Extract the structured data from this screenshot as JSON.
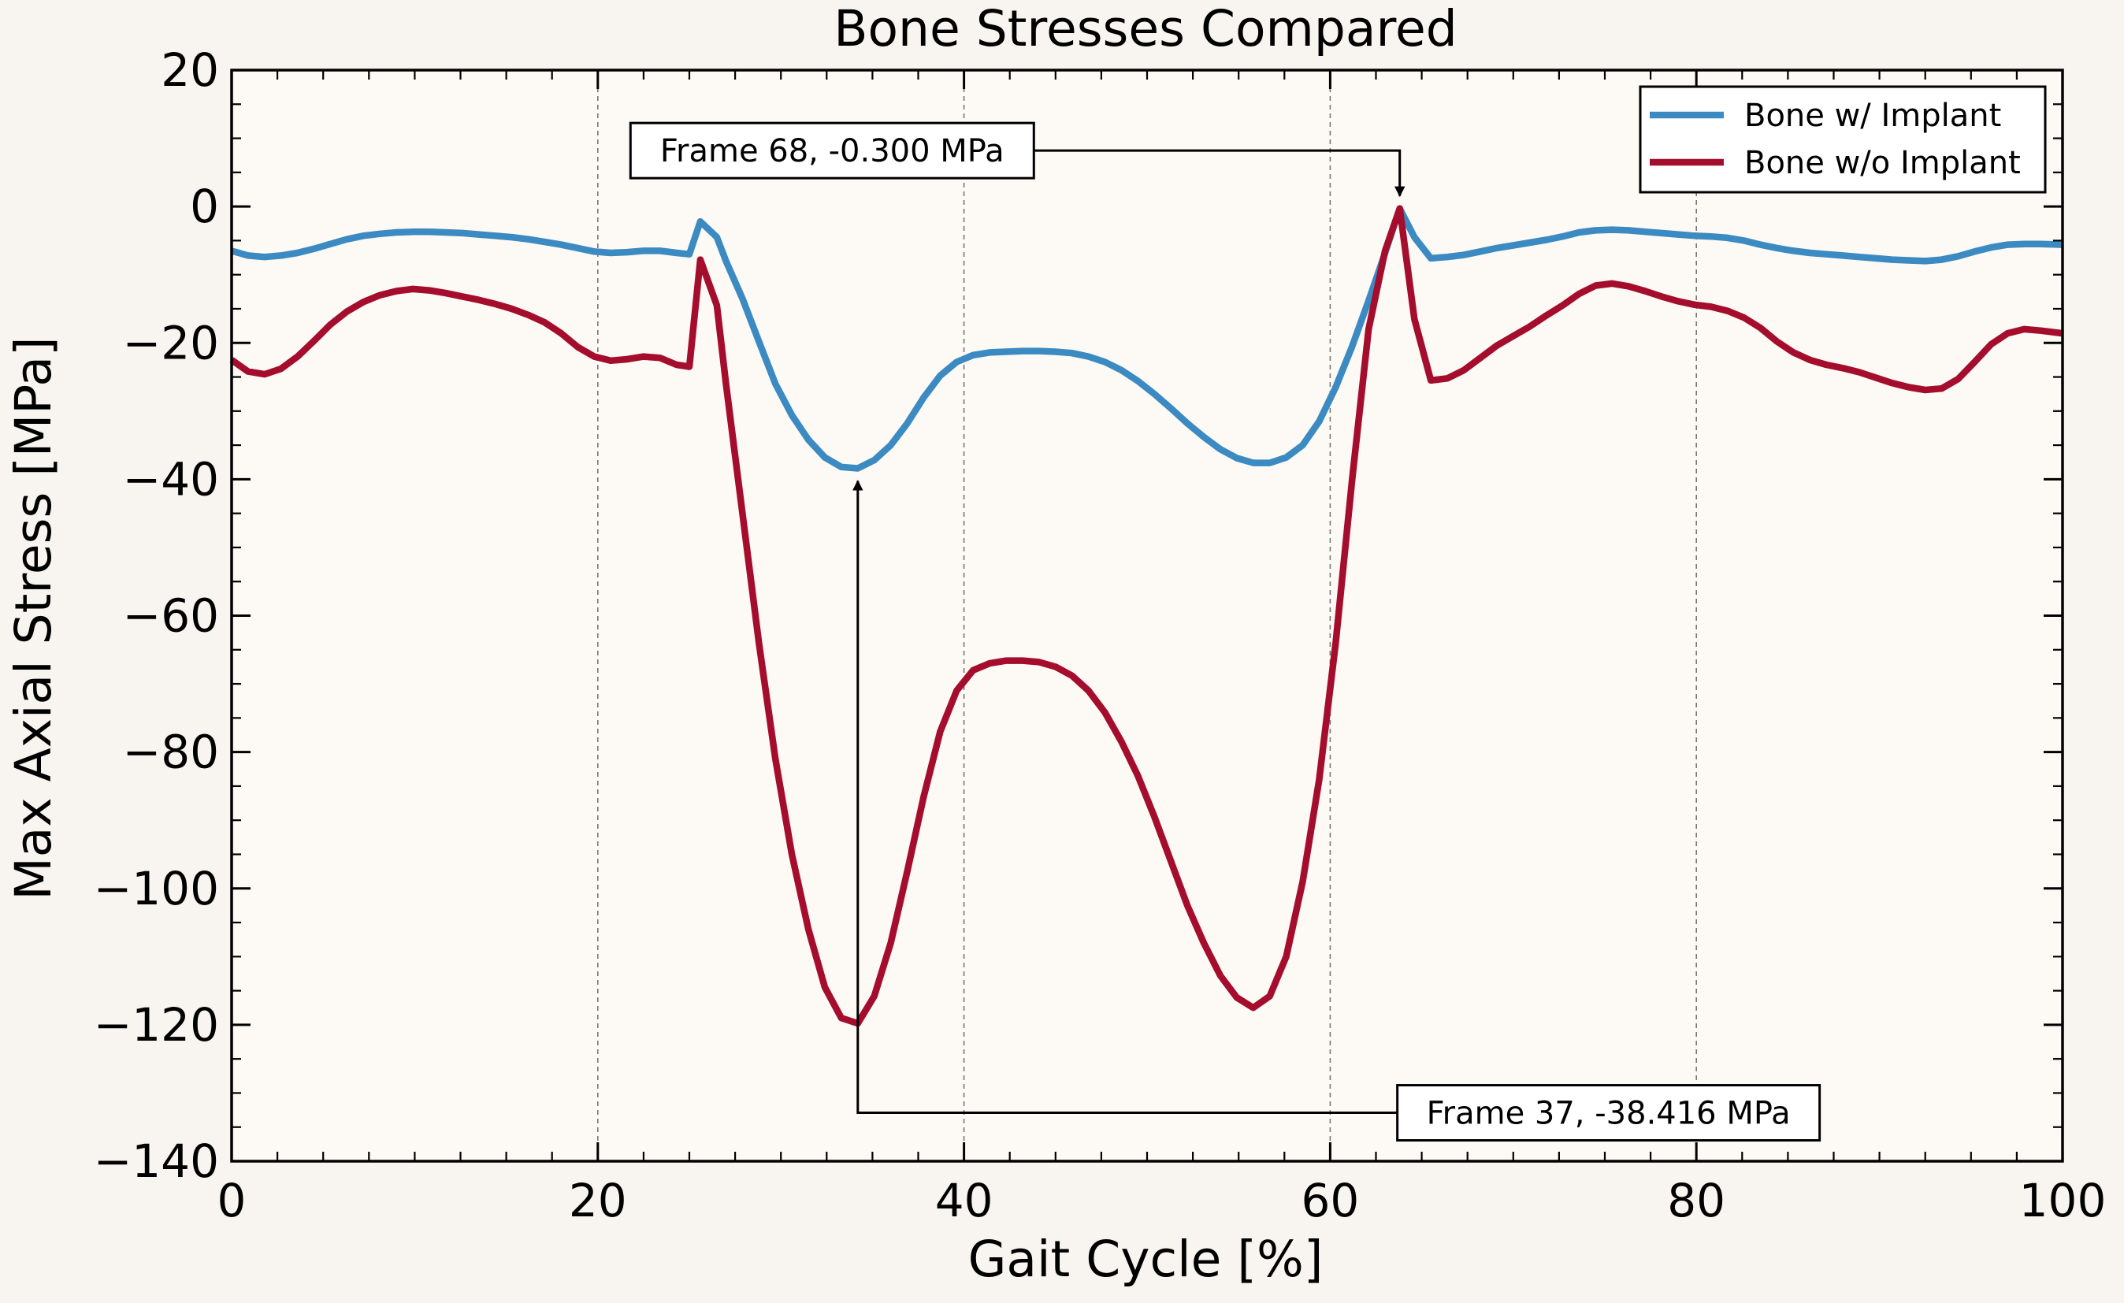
{
  "chart_data": {
    "type": "line",
    "title": "Bone Stresses Compared",
    "xlabel": "Gait Cycle [%]",
    "ylabel": "Max Axial Stress [MPa]",
    "xlim": [
      0,
      100
    ],
    "ylim": [
      -140,
      20
    ],
    "x_ticks": [
      0,
      20,
      40,
      60,
      80,
      100
    ],
    "y_ticks": [
      -140,
      -120,
      -100,
      -80,
      -60,
      -40,
      -20,
      0,
      20
    ],
    "x_tick_labels": [
      "0",
      "20",
      "40",
      "60",
      "80",
      "100"
    ],
    "y_tick_labels": [
      "−140",
      "−120",
      "−100",
      "−80",
      "−60",
      "−40",
      "−20",
      "0",
      "20"
    ],
    "grid": "vertical dashed at x = 20, 40, 60, 80",
    "legend_position": "top-right",
    "colors": {
      "plot_background": "#fdf9f5",
      "page_background": "#f8f4f0",
      "grid": "#777777"
    },
    "series": [
      {
        "name": "Bone w/ Implant",
        "color": "#3b8bc2",
        "points": [
          [
            0,
            -6.5
          ],
          [
            0.9,
            -7.2
          ],
          [
            1.8,
            -7.4
          ],
          [
            2.7,
            -7.2
          ],
          [
            3.6,
            -6.8
          ],
          [
            4.5,
            -6.2
          ],
          [
            5.4,
            -5.5
          ],
          [
            6.3,
            -4.8
          ],
          [
            7.2,
            -4.3
          ],
          [
            8.1,
            -4.0
          ],
          [
            9.0,
            -3.8
          ],
          [
            9.9,
            -3.7
          ],
          [
            10.8,
            -3.7
          ],
          [
            11.7,
            -3.8
          ],
          [
            12.6,
            -3.9
          ],
          [
            13.5,
            -4.1
          ],
          [
            14.4,
            -4.3
          ],
          [
            15.3,
            -4.5
          ],
          [
            16.2,
            -4.8
          ],
          [
            17.1,
            -5.2
          ],
          [
            18.0,
            -5.6
          ],
          [
            18.9,
            -6.1
          ],
          [
            19.8,
            -6.6
          ],
          [
            20.7,
            -6.8
          ],
          [
            21.6,
            -6.7
          ],
          [
            22.5,
            -6.5
          ],
          [
            23.4,
            -6.5
          ],
          [
            24.3,
            -6.8
          ],
          [
            25.0,
            -7.0
          ],
          [
            25.6,
            -2.2
          ],
          [
            26.5,
            -4.5
          ],
          [
            27.0,
            -8.0
          ],
          [
            27.9,
            -13.5
          ],
          [
            28.8,
            -19.8
          ],
          [
            29.7,
            -26.0
          ],
          [
            30.6,
            -30.6
          ],
          [
            31.5,
            -34.2
          ],
          [
            32.4,
            -36.8
          ],
          [
            33.3,
            -38.2
          ],
          [
            34.2,
            -38.4
          ],
          [
            35.1,
            -37.2
          ],
          [
            36.0,
            -35.0
          ],
          [
            36.9,
            -31.8
          ],
          [
            37.8,
            -28.0
          ],
          [
            38.7,
            -24.8
          ],
          [
            39.6,
            -22.8
          ],
          [
            40.5,
            -21.8
          ],
          [
            41.4,
            -21.4
          ],
          [
            42.3,
            -21.3
          ],
          [
            43.2,
            -21.2
          ],
          [
            44.1,
            -21.2
          ],
          [
            45.0,
            -21.3
          ],
          [
            45.9,
            -21.5
          ],
          [
            46.8,
            -22.0
          ],
          [
            47.7,
            -22.8
          ],
          [
            48.6,
            -24.0
          ],
          [
            49.5,
            -25.6
          ],
          [
            50.4,
            -27.5
          ],
          [
            51.3,
            -29.6
          ],
          [
            52.2,
            -31.8
          ],
          [
            53.1,
            -33.8
          ],
          [
            54.0,
            -35.6
          ],
          [
            54.9,
            -36.9
          ],
          [
            55.8,
            -37.6
          ],
          [
            56.7,
            -37.6
          ],
          [
            57.6,
            -36.8
          ],
          [
            58.5,
            -35.0
          ],
          [
            59.4,
            -31.5
          ],
          [
            60.3,
            -26.5
          ],
          [
            61.2,
            -20.5
          ],
          [
            62.1,
            -13.8
          ],
          [
            63.0,
            -6.8
          ],
          [
            63.8,
            -0.3
          ],
          [
            64.6,
            -4.5
          ],
          [
            65.5,
            -7.6
          ],
          [
            66.4,
            -7.4
          ],
          [
            67.3,
            -7.1
          ],
          [
            68.2,
            -6.6
          ],
          [
            69.1,
            -6.1
          ],
          [
            70.0,
            -5.7
          ],
          [
            70.9,
            -5.3
          ],
          [
            71.8,
            -4.9
          ],
          [
            72.7,
            -4.4
          ],
          [
            73.6,
            -3.8
          ],
          [
            74.5,
            -3.5
          ],
          [
            75.4,
            -3.4
          ],
          [
            76.3,
            -3.5
          ],
          [
            77.2,
            -3.7
          ],
          [
            78.1,
            -3.9
          ],
          [
            79.0,
            -4.1
          ],
          [
            79.9,
            -4.3
          ],
          [
            80.8,
            -4.4
          ],
          [
            81.7,
            -4.6
          ],
          [
            82.6,
            -5.0
          ],
          [
            83.5,
            -5.6
          ],
          [
            84.4,
            -6.1
          ],
          [
            85.3,
            -6.5
          ],
          [
            86.2,
            -6.8
          ],
          [
            87.1,
            -7.0
          ],
          [
            88.0,
            -7.2
          ],
          [
            88.9,
            -7.4
          ],
          [
            89.8,
            -7.6
          ],
          [
            90.7,
            -7.8
          ],
          [
            91.6,
            -7.9
          ],
          [
            92.5,
            -8.0
          ],
          [
            93.4,
            -7.8
          ],
          [
            94.3,
            -7.3
          ],
          [
            95.2,
            -6.6
          ],
          [
            96.1,
            -6.0
          ],
          [
            97.0,
            -5.6
          ],
          [
            97.9,
            -5.5
          ],
          [
            98.8,
            -5.5
          ],
          [
            100,
            -5.6
          ]
        ]
      },
      {
        "name": "Bone w/o Implant",
        "color": "#a50d2d",
        "points": [
          [
            0,
            -22.5
          ],
          [
            0.9,
            -24.2
          ],
          [
            1.8,
            -24.6
          ],
          [
            2.7,
            -23.8
          ],
          [
            3.6,
            -22.0
          ],
          [
            4.5,
            -19.7
          ],
          [
            5.4,
            -17.3
          ],
          [
            6.3,
            -15.4
          ],
          [
            7.2,
            -14.0
          ],
          [
            8.1,
            -13.0
          ],
          [
            9.0,
            -12.4
          ],
          [
            9.9,
            -12.1
          ],
          [
            10.8,
            -12.3
          ],
          [
            11.7,
            -12.7
          ],
          [
            12.6,
            -13.2
          ],
          [
            13.5,
            -13.7
          ],
          [
            14.4,
            -14.3
          ],
          [
            15.3,
            -15.0
          ],
          [
            16.2,
            -15.9
          ],
          [
            17.1,
            -17.0
          ],
          [
            18.0,
            -18.6
          ],
          [
            18.9,
            -20.6
          ],
          [
            19.8,
            -22.0
          ],
          [
            20.7,
            -22.6
          ],
          [
            21.6,
            -22.4
          ],
          [
            22.5,
            -22.0
          ],
          [
            23.4,
            -22.2
          ],
          [
            24.3,
            -23.2
          ],
          [
            25.0,
            -23.5
          ],
          [
            25.6,
            -7.8
          ],
          [
            26.5,
            -14.5
          ],
          [
            27.0,
            -26.0
          ],
          [
            27.9,
            -45.0
          ],
          [
            28.8,
            -64.0
          ],
          [
            29.7,
            -81.0
          ],
          [
            30.6,
            -95.0
          ],
          [
            31.5,
            -106.0
          ],
          [
            32.4,
            -114.5
          ],
          [
            33.3,
            -119.0
          ],
          [
            34.2,
            -119.8
          ],
          [
            35.1,
            -115.8
          ],
          [
            36.0,
            -108.0
          ],
          [
            36.9,
            -97.5
          ],
          [
            37.8,
            -86.5
          ],
          [
            38.7,
            -77.0
          ],
          [
            39.6,
            -71.0
          ],
          [
            40.5,
            -68.0
          ],
          [
            41.4,
            -67.0
          ],
          [
            42.3,
            -66.6
          ],
          [
            43.2,
            -66.6
          ],
          [
            44.1,
            -66.8
          ],
          [
            45.0,
            -67.5
          ],
          [
            45.9,
            -68.8
          ],
          [
            46.8,
            -71.0
          ],
          [
            47.7,
            -74.2
          ],
          [
            48.6,
            -78.5
          ],
          [
            49.5,
            -83.5
          ],
          [
            50.4,
            -89.5
          ],
          [
            51.3,
            -96.0
          ],
          [
            52.2,
            -102.5
          ],
          [
            53.1,
            -108.0
          ],
          [
            54.0,
            -112.8
          ],
          [
            54.9,
            -116.0
          ],
          [
            55.8,
            -117.5
          ],
          [
            56.7,
            -115.8
          ],
          [
            57.6,
            -110.0
          ],
          [
            58.5,
            -99.0
          ],
          [
            59.4,
            -84.0
          ],
          [
            60.3,
            -64.0
          ],
          [
            61.2,
            -40.0
          ],
          [
            62.1,
            -18.0
          ],
          [
            63.0,
            -6.5
          ],
          [
            63.8,
            -0.3
          ],
          [
            64.6,
            -16.5
          ],
          [
            65.5,
            -25.5
          ],
          [
            66.4,
            -25.2
          ],
          [
            67.3,
            -24.0
          ],
          [
            68.2,
            -22.2
          ],
          [
            69.1,
            -20.4
          ],
          [
            70.0,
            -19.0
          ],
          [
            70.9,
            -17.6
          ],
          [
            71.8,
            -16.0
          ],
          [
            72.7,
            -14.5
          ],
          [
            73.6,
            -12.8
          ],
          [
            74.5,
            -11.6
          ],
          [
            75.4,
            -11.3
          ],
          [
            76.3,
            -11.7
          ],
          [
            77.2,
            -12.4
          ],
          [
            78.1,
            -13.2
          ],
          [
            79.0,
            -13.9
          ],
          [
            79.9,
            -14.4
          ],
          [
            80.8,
            -14.7
          ],
          [
            81.7,
            -15.3
          ],
          [
            82.6,
            -16.3
          ],
          [
            83.5,
            -17.8
          ],
          [
            84.4,
            -19.8
          ],
          [
            85.3,
            -21.4
          ],
          [
            86.2,
            -22.5
          ],
          [
            87.1,
            -23.2
          ],
          [
            88.0,
            -23.7
          ],
          [
            88.9,
            -24.3
          ],
          [
            89.8,
            -25.1
          ],
          [
            90.7,
            -25.9
          ],
          [
            91.6,
            -26.5
          ],
          [
            92.5,
            -26.9
          ],
          [
            93.4,
            -26.7
          ],
          [
            94.3,
            -25.3
          ],
          [
            95.2,
            -22.8
          ],
          [
            96.1,
            -20.2
          ],
          [
            97.0,
            -18.6
          ],
          [
            97.9,
            -18.0
          ],
          [
            98.8,
            -18.2
          ],
          [
            100,
            -18.6
          ]
        ]
      }
    ],
    "annotations": [
      {
        "text": "Frame 68, -0.300 MPa",
        "xy": [
          63.8,
          -0.3
        ],
        "text_anchor": [
          32.8,
          8.2
        ]
      },
      {
        "text": "Frame 37, -38.416 MPa",
        "xy": [
          34.2,
          -38.4
        ],
        "text_anchor": [
          75.2,
          -132.9
        ]
      }
    ]
  }
}
